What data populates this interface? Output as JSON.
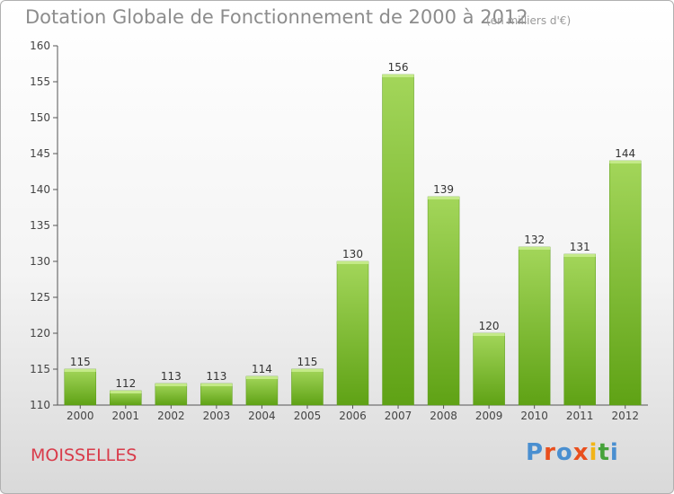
{
  "chart_data": {
    "type": "bar",
    "title": "Dotation Globale de Fonctionnement de 2000 à 2012",
    "subtitle": "(en milliers d'€)",
    "xlabel": "",
    "ylabel": "",
    "categories": [
      "2000",
      "2001",
      "2002",
      "2003",
      "2004",
      "2005",
      "2006",
      "2007",
      "2008",
      "2009",
      "2010",
      "2011",
      "2012"
    ],
    "values": [
      115,
      112,
      113,
      113,
      114,
      115,
      130,
      156,
      139,
      120,
      132,
      131,
      144
    ],
    "ylim": [
      110,
      160
    ],
    "yticks": [
      110,
      115,
      120,
      125,
      130,
      135,
      140,
      145,
      150,
      155,
      160
    ],
    "grid": false,
    "bar_color_top": "#a3d65a",
    "bar_color_bottom": "#5fa215"
  },
  "commune": "MOISSELLES",
  "logo": {
    "text": "Proxiti",
    "colors": [
      "#4a8fd0",
      "#e94f1d",
      "#4a8fd0",
      "#e94f1d",
      "#f2b418",
      "#46a23a",
      "#4a8fd0"
    ]
  }
}
